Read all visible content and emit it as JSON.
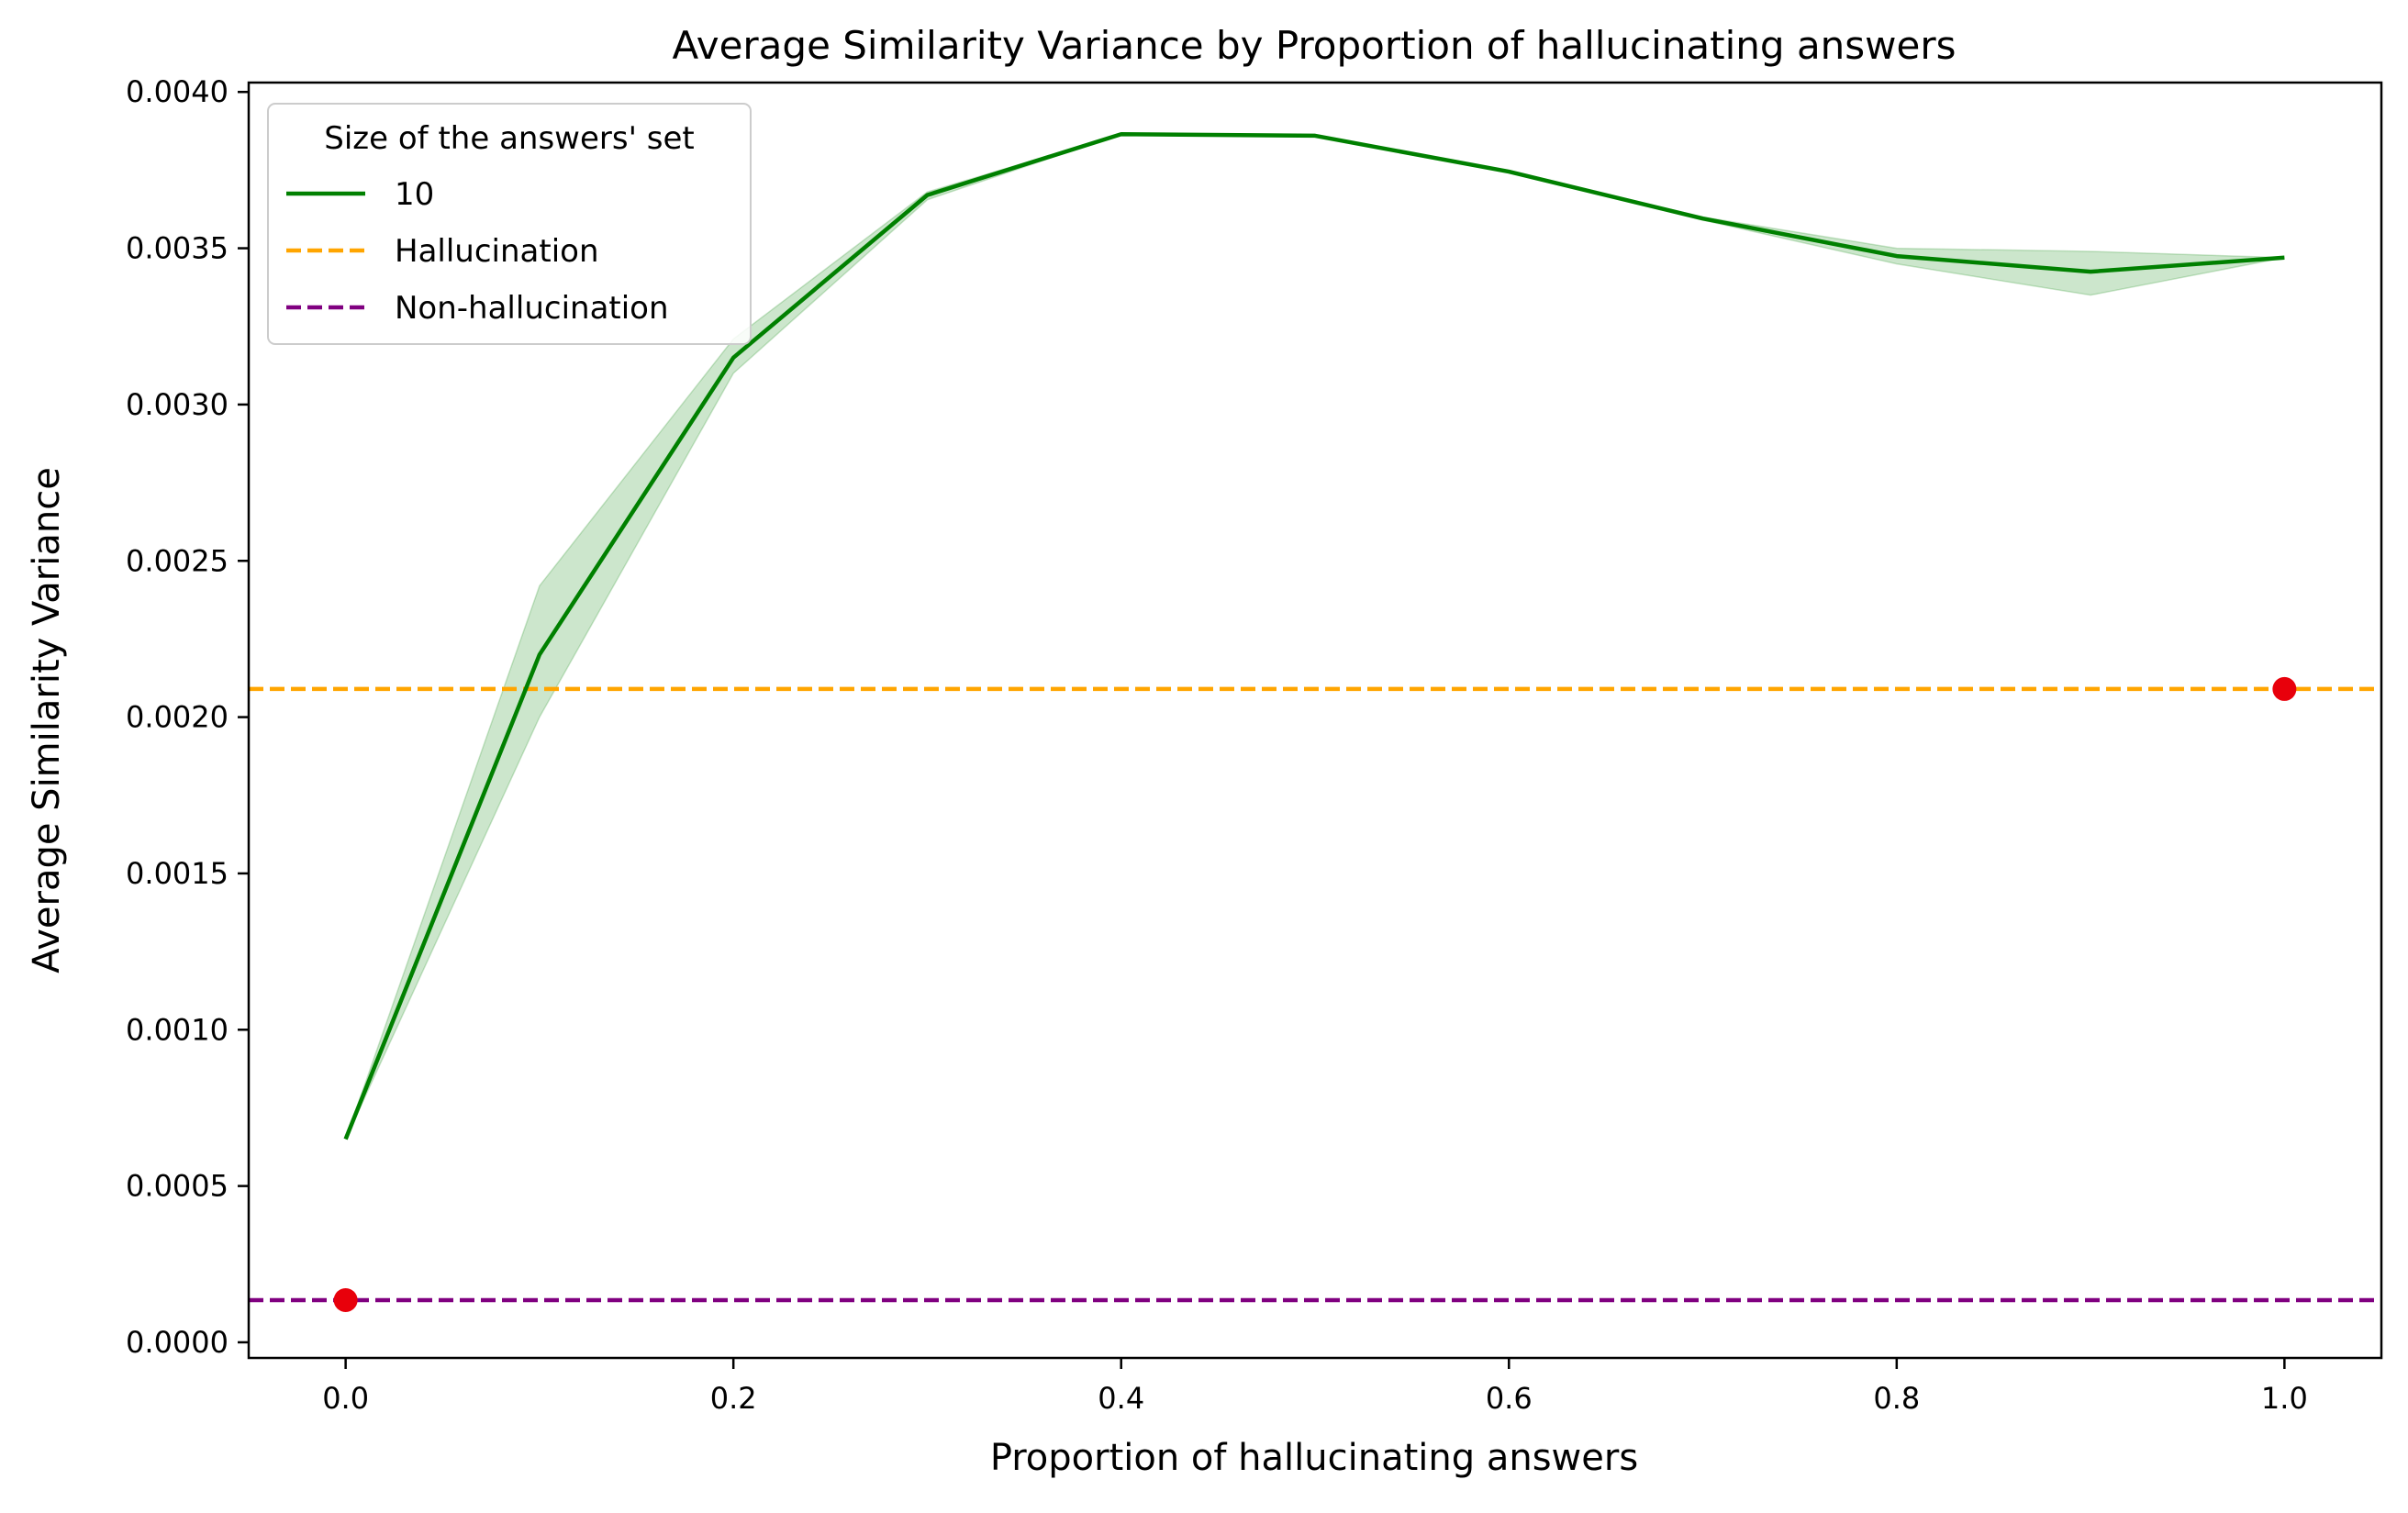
{
  "chart_data": {
    "type": "line",
    "title": "Average Similarity Variance by Proportion of hallucinating answers",
    "xlabel": "Proportion of hallucinating answers",
    "ylabel": "Average Similarity Variance",
    "xlim": [
      -0.05,
      1.05
    ],
    "ylim": [
      -5e-05,
      0.00403
    ],
    "xticks": [
      0.0,
      0.2,
      0.4,
      0.6,
      0.8,
      1.0
    ],
    "xtick_labels": [
      "0.0",
      "0.2",
      "0.4",
      "0.6",
      "0.8",
      "1.0"
    ],
    "yticks": [
      0.0,
      0.0005,
      0.001,
      0.0015,
      0.002,
      0.0025,
      0.003,
      0.0035,
      0.004
    ],
    "ytick_labels": [
      "0.0000",
      "0.0005",
      "0.0010",
      "0.0015",
      "0.0020",
      "0.0025",
      "0.0030",
      "0.0035",
      "0.0040"
    ],
    "grid": false,
    "legend": {
      "title": "Size of the answers' set",
      "position": "upper-left",
      "entries": [
        "10",
        "Hallucination",
        "Non-hallucination"
      ]
    },
    "series": [
      {
        "name": "10",
        "color": "#008000",
        "style": "solid",
        "x": [
          0.0,
          0.1,
          0.2,
          0.3,
          0.4,
          0.5,
          0.6,
          0.7,
          0.8,
          0.9,
          1.0
        ],
        "y": [
          0.00065,
          0.0022,
          0.00315,
          0.00367,
          0.003865,
          0.00386,
          0.003745,
          0.003595,
          0.003475,
          0.003425,
          0.00347
        ],
        "ci_lower": [
          0.00065,
          0.002,
          0.0031,
          0.003655,
          0.003865,
          0.00386,
          0.003745,
          0.00359,
          0.00345,
          0.00335,
          0.00347
        ],
        "ci_upper": [
          0.00065,
          0.00242,
          0.00321,
          0.00368,
          0.003865,
          0.00386,
          0.003745,
          0.0036,
          0.0035,
          0.00349,
          0.00347
        ],
        "ci_color": "#008000"
      }
    ],
    "reference_lines": [
      {
        "name": "Hallucination",
        "y": 0.00209,
        "color": "#FFA500",
        "style": "dashed"
      },
      {
        "name": "Non-hallucination",
        "y": 0.000135,
        "color": "#800080",
        "style": "dashed"
      }
    ],
    "points": [
      {
        "x": 0.0,
        "y": 0.000135,
        "color": "#E8000B"
      },
      {
        "x": 1.0,
        "y": 0.00209,
        "color": "#E8000B"
      }
    ]
  }
}
